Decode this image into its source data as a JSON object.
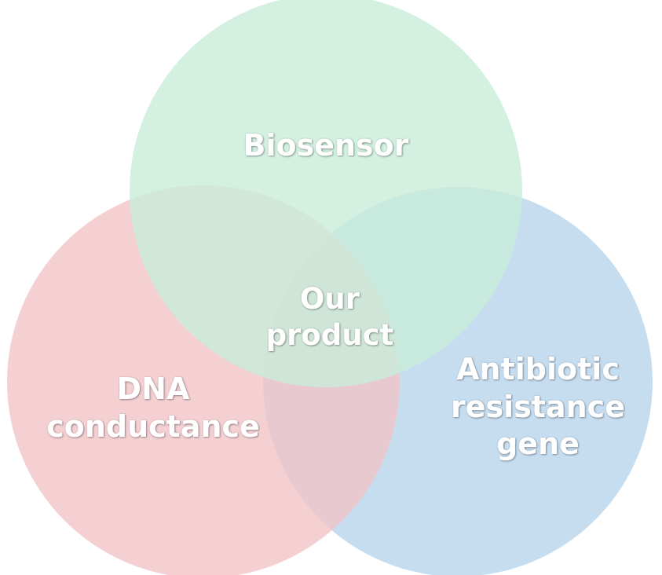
{
  "diagram": {
    "type": "venn-3",
    "sets": [
      {
        "id": "biosensor",
        "lines": [
          "Biosensor"
        ],
        "color": "#c8ecd9"
      },
      {
        "id": "dna",
        "lines": [
          "DNA",
          "conductance"
        ],
        "color": "#f1c4c8"
      },
      {
        "id": "antibiotic",
        "lines": [
          "Antibiotic",
          "resistance",
          "gene"
        ],
        "color": "#b8d5ec"
      }
    ],
    "center": {
      "lines": [
        "Our",
        "product"
      ]
    }
  }
}
